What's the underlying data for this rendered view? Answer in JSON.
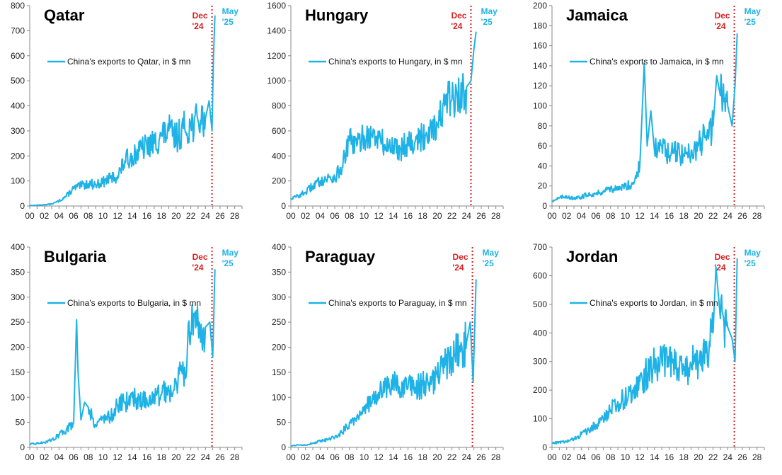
{
  "colors": {
    "series": "#1eb2e6",
    "dec_marker": "#d62020",
    "may_label": "#1eb2e6"
  },
  "annotations": {
    "dec_line1": "Dec",
    "dec_line2": "'24",
    "may_line1": "May",
    "may_line2": "'25"
  },
  "chart_data": [
    {
      "type": "line",
      "title": "Qatar",
      "series_name": "China's exports to Qatar, in $ mn",
      "xlim": [
        0,
        29
      ],
      "ylim": [
        0,
        800
      ],
      "x_ticks": [
        "00",
        "02",
        "04",
        "06",
        "08",
        "10",
        "12",
        "14",
        "16",
        "18",
        "20",
        "22",
        "24",
        "26",
        "28"
      ],
      "y_ticks": [
        0,
        100,
        200,
        300,
        400,
        500,
        600,
        700,
        800
      ],
      "dec_marker_x": 24.9,
      "x": [
        0,
        1,
        2,
        3,
        4,
        5,
        6,
        7,
        8,
        9,
        10,
        11,
        12,
        13,
        14,
        15,
        16,
        17,
        18,
        19,
        20,
        21,
        22,
        23,
        24,
        24.5,
        24.9,
        25.1,
        25.3
      ],
      "values": [
        2,
        3,
        5,
        8,
        20,
        40,
        70,
        80,
        90,
        85,
        95,
        110,
        120,
        180,
        200,
        220,
        240,
        250,
        280,
        300,
        270,
        310,
        320,
        340,
        350,
        420,
        300,
        600,
        760
      ]
    },
    {
      "type": "line",
      "title": "Hungary",
      "series_name": "China's exports to Hungary, in $ mn",
      "xlim": [
        0,
        29
      ],
      "ylim": [
        0,
        1600
      ],
      "x_ticks": [
        "00",
        "02",
        "04",
        "06",
        "08",
        "10",
        "12",
        "14",
        "16",
        "18",
        "20",
        "22",
        "24",
        "26",
        "28"
      ],
      "y_ticks": [
        0,
        200,
        400,
        600,
        800,
        1000,
        1200,
        1400,
        1600
      ],
      "dec_marker_x": 24.6,
      "x": [
        0,
        1,
        2,
        3,
        4,
        5,
        6,
        7,
        8,
        9,
        10,
        11,
        12,
        13,
        14,
        15,
        16,
        17,
        18,
        19,
        20,
        21,
        22,
        23,
        24,
        24.6,
        25,
        25.3
      ],
      "values": [
        60,
        80,
        110,
        160,
        200,
        220,
        230,
        310,
        520,
        480,
        560,
        560,
        540,
        470,
        480,
        460,
        520,
        520,
        540,
        640,
        650,
        800,
        850,
        840,
        950,
        1000,
        1250,
        1390
      ]
    },
    {
      "type": "line",
      "title": "Jamaica",
      "series_name": "China's exports to Jamaica, in $ mn",
      "xlim": [
        0,
        29
      ],
      "ylim": [
        0,
        200
      ],
      "x_ticks": [
        "00",
        "02",
        "04",
        "06",
        "08",
        "10",
        "12",
        "14",
        "16",
        "18",
        "20",
        "22",
        "24",
        "26",
        "28"
      ],
      "y_ticks": [
        0,
        20,
        40,
        60,
        80,
        100,
        120,
        140,
        160,
        180,
        200
      ],
      "dec_marker_x": 24.9,
      "x": [
        0,
        1,
        2,
        3,
        4,
        5,
        6,
        7,
        8,
        9,
        10,
        11,
        12,
        12.6,
        13,
        13.5,
        14,
        15,
        16,
        17,
        18,
        19,
        20,
        21,
        22,
        22.5,
        23,
        24,
        24.6,
        25,
        25.3
      ],
      "values": [
        5,
        8,
        10,
        7,
        9,
        12,
        12,
        15,
        18,
        16,
        20,
        22,
        40,
        143,
        60,
        95,
        55,
        60,
        50,
        55,
        50,
        55,
        60,
        70,
        80,
        130,
        110,
        100,
        80,
        120,
        172
      ]
    },
    {
      "type": "line",
      "title": "Bulgaria",
      "series_name": "China's exports to Bulgaria, in $ mn",
      "xlim": [
        0,
        29
      ],
      "ylim": [
        0,
        400
      ],
      "x_ticks": [
        "00",
        "02",
        "04",
        "06",
        "08",
        "10",
        "12",
        "14",
        "16",
        "18",
        "20",
        "22",
        "24",
        "26",
        "28"
      ],
      "y_ticks": [
        0,
        50,
        100,
        150,
        200,
        250,
        300,
        350,
        400
      ],
      "dec_marker_x": 24.9,
      "x": [
        0,
        1,
        2,
        3,
        4,
        5,
        6,
        6.4,
        6.6,
        7,
        7.5,
        8,
        9,
        10,
        11,
        12,
        13,
        14,
        15,
        16,
        17,
        18,
        19,
        20,
        21,
        22,
        23,
        24,
        24.6,
        25,
        25.3
      ],
      "values": [
        6,
        8,
        10,
        15,
        25,
        35,
        50,
        255,
        150,
        55,
        90,
        80,
        45,
        60,
        60,
        85,
        90,
        100,
        95,
        95,
        100,
        105,
        115,
        130,
        150,
        230,
        250,
        240,
        250,
        180,
        355
      ]
    },
    {
      "type": "line",
      "title": "Paraguay",
      "series_name": "China's exports to Paraguay, in $ mn",
      "xlim": [
        0,
        29
      ],
      "ylim": [
        0,
        400
      ],
      "x_ticks": [
        "00",
        "02",
        "04",
        "06",
        "08",
        "10",
        "12",
        "14",
        "16",
        "18",
        "20",
        "22",
        "24",
        "26",
        "28"
      ],
      "y_ticks": [
        0,
        50,
        100,
        150,
        200,
        250,
        300,
        350,
        400
      ],
      "dec_marker_x": 24.8,
      "x": [
        0,
        1,
        2,
        3,
        4,
        5,
        6,
        7,
        8,
        9,
        10,
        11,
        12,
        13,
        14,
        15,
        16,
        17,
        18,
        19,
        20,
        21,
        22,
        23,
        24,
        24.5,
        24.9,
        25.3
      ],
      "values": [
        3,
        5,
        5,
        8,
        12,
        15,
        20,
        30,
        50,
        60,
        80,
        90,
        110,
        120,
        130,
        110,
        120,
        120,
        125,
        130,
        140,
        160,
        180,
        190,
        210,
        250,
        130,
        335
      ]
    },
    {
      "type": "line",
      "title": "Jordan",
      "series_name": "China's exports to Jordan, in $ mn",
      "xlim": [
        0,
        29
      ],
      "ylim": [
        0,
        700
      ],
      "x_ticks": [
        "00",
        "02",
        "04",
        "06",
        "08",
        "10",
        "12",
        "14",
        "16",
        "18",
        "20",
        "22",
        "24",
        "26",
        "28"
      ],
      "y_ticks": [
        0,
        100,
        200,
        300,
        400,
        500,
        600,
        700
      ],
      "dec_marker_x": 24.9,
      "x": [
        0,
        1,
        2,
        3,
        4,
        5,
        6,
        7,
        8,
        9,
        10,
        11,
        12,
        13,
        14,
        15,
        16,
        17,
        18,
        19,
        20,
        21,
        22,
        22.4,
        23,
        24,
        24.6,
        25,
        25.3
      ],
      "values": [
        15,
        18,
        20,
        30,
        45,
        60,
        80,
        100,
        130,
        160,
        170,
        200,
        230,
        260,
        290,
        300,
        300,
        280,
        270,
        290,
        300,
        330,
        400,
        630,
        450,
        420,
        380,
        300,
        660
      ]
    }
  ]
}
